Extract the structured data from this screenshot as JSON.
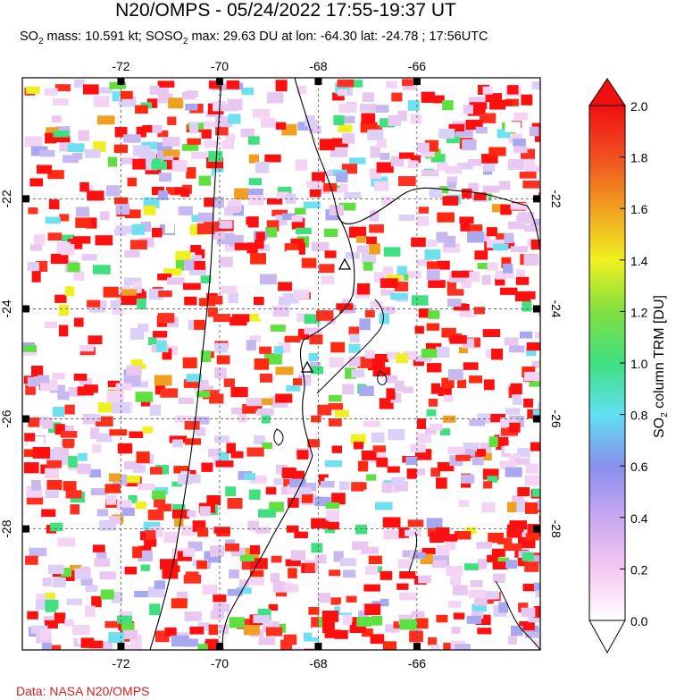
{
  "title": "N20/OMPS - 05/24/2022 17:55-19:37 UT",
  "subtitle": {
    "so": "SO",
    "sub2": "2",
    "mass_text": " mass: 10.591 kt; SO",
    "max_text": " max: 29.63 DU at lon: -64.30 lat: -24.78 ; 17:56UTC"
  },
  "map": {
    "lon_range": [
      -74.0,
      -63.5
    ],
    "lat_range": [
      -30.2,
      -19.8
    ],
    "lon_ticks": [
      -72,
      -70,
      -68,
      -66
    ],
    "lat_ticks": [
      -22,
      -24,
      -26,
      -28
    ],
    "lon_tick_labels": [
      "-72",
      "-70",
      "-68",
      "-66"
    ],
    "lat_tick_labels": [
      "-22",
      "-24",
      "-26",
      "-28"
    ],
    "grid": true,
    "volcano_markers": [
      "triangle",
      "triangle"
    ]
  },
  "colorbar": {
    "min": 0.0,
    "max": 2.0,
    "tick_labels": [
      "0.0",
      "0.2",
      "0.4",
      "0.6",
      "0.8",
      "1.0",
      "1.2",
      "1.4",
      "1.6",
      "1.8",
      "2.0"
    ],
    "label_prefix": "SO",
    "label_sub": "2",
    "label_suffix": " column TRM [DU]",
    "colors": [
      "#ffffff",
      "#f4c8f0",
      "#c8a8f0",
      "#8890ee",
      "#60e0f0",
      "#40e080",
      "#80e040",
      "#f0f020",
      "#f0a020",
      "#f05020",
      "#f01010"
    ]
  },
  "credit": "Data: NASA N20/OMPS"
}
